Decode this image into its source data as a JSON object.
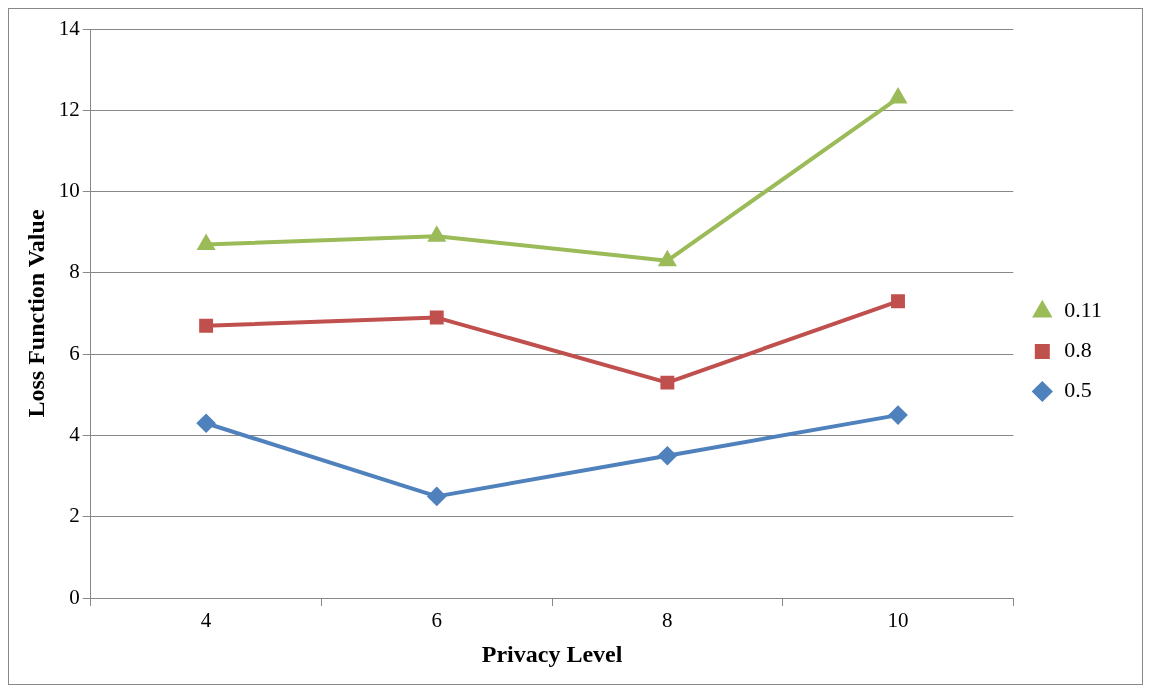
{
  "chart_data": {
    "type": "line",
    "xlabel": "Privacy Level",
    "ylabel": "Loss Function Value",
    "categories": [
      "4",
      "6",
      "8",
      "10"
    ],
    "series": [
      {
        "name": "0.11",
        "color": "#9bbb59",
        "marker": "triangle",
        "values": [
          8.7,
          8.9,
          8.3,
          12.3
        ]
      },
      {
        "name": "0.8",
        "color": "#c0504d",
        "marker": "square",
        "values": [
          6.7,
          6.9,
          5.3,
          7.3
        ]
      },
      {
        "name": "0.5",
        "color": "#4f81bd",
        "marker": "diamond",
        "values": [
          4.3,
          2.5,
          3.5,
          4.5
        ]
      }
    ],
    "ylim": [
      0,
      14
    ],
    "yticks": [
      0,
      2,
      4,
      6,
      8,
      10,
      12,
      14
    ],
    "grid": "y",
    "legend": "right",
    "line_style": "solid"
  }
}
